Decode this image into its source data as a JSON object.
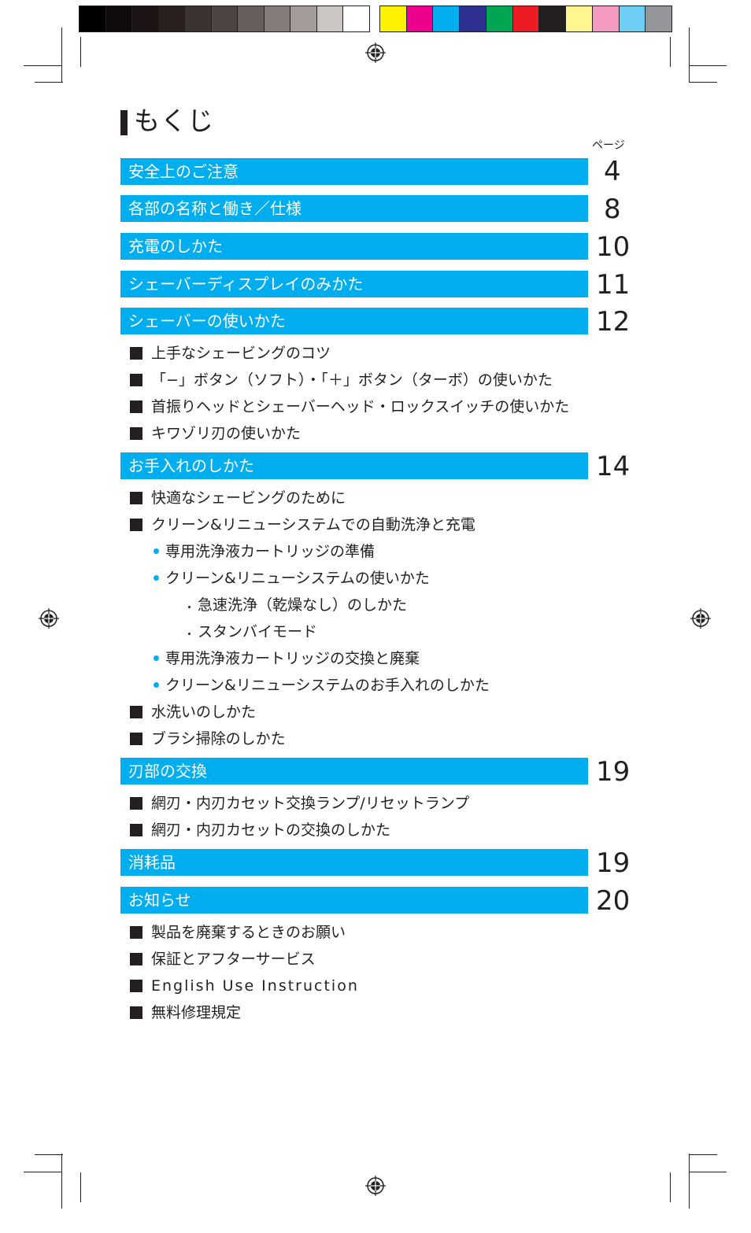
{
  "title": "もくじ",
  "page_column_label": "ページ",
  "colors": {
    "accent": "#00aeef",
    "text": "#231f20",
    "grayscale_bar": [
      "#000000",
      "#100b0b",
      "#1c1414",
      "#2a2020",
      "#3b3232",
      "#4e4444",
      "#675e5d",
      "#847b7a",
      "#a39c9b",
      "#cbc5c4",
      "#ffffff"
    ],
    "color_bar": [
      "#fff200",
      "#ec008c",
      "#00aeef",
      "#2e3192",
      "#00a651",
      "#ed1c24",
      "#231f20",
      "#fff68f",
      "#f49ac1",
      "#6dcff6",
      "#939598"
    ]
  },
  "sections": [
    {
      "label": "安全上のご注意",
      "page": "4"
    },
    {
      "label": "各部の名称と働き／仕様",
      "page": "8"
    },
    {
      "label": "充電のしかた",
      "page": "10"
    },
    {
      "label": "シェーバーディスプレイのみかた",
      "page": "11"
    },
    {
      "label": "シェーバーの使いかた",
      "page": "12"
    },
    {
      "label": "お手入れのしかた",
      "page": "14"
    },
    {
      "label": "刃部の交換",
      "page": "19"
    },
    {
      "label": "消耗品",
      "page": "19"
    },
    {
      "label": "お知らせ",
      "page": "20"
    }
  ],
  "items": {
    "shaver_usage": [
      "上手なシェービングのコツ",
      "「−」ボタン（ソフト）・「＋」ボタン（ターボ）の使いかた",
      "首振りヘッドとシェーバーヘッド・ロックスイッチの使いかた",
      "キワゾリ刃の使いかた"
    ],
    "care": [
      "快適なシェービングのために",
      "クリーン&リニューシステムでの自動洗浄と充電"
    ],
    "care_sub": [
      "専用洗浄液カートリッジの準備",
      "クリーン&リニューシステムの使いかた"
    ],
    "care_subsub": [
      "急速洗浄（乾燥なし）のしかた",
      "スタンバイモード"
    ],
    "care_sub2": [
      "専用洗浄液カートリッジの交換と廃棄",
      "クリーン&リニューシステムのお手入れのしかた"
    ],
    "care_more": [
      "水洗いのしかた",
      "ブラシ掃除のしかた"
    ],
    "blade": [
      "網刃・内刃カセット交換ランプ/リセットランプ",
      "網刃・内刃カセットの交換のしかた"
    ],
    "notices": [
      "製品を廃棄するときのお願い",
      "保証とアフターサービス",
      "English Use Instruction",
      "無料修理規定"
    ]
  }
}
